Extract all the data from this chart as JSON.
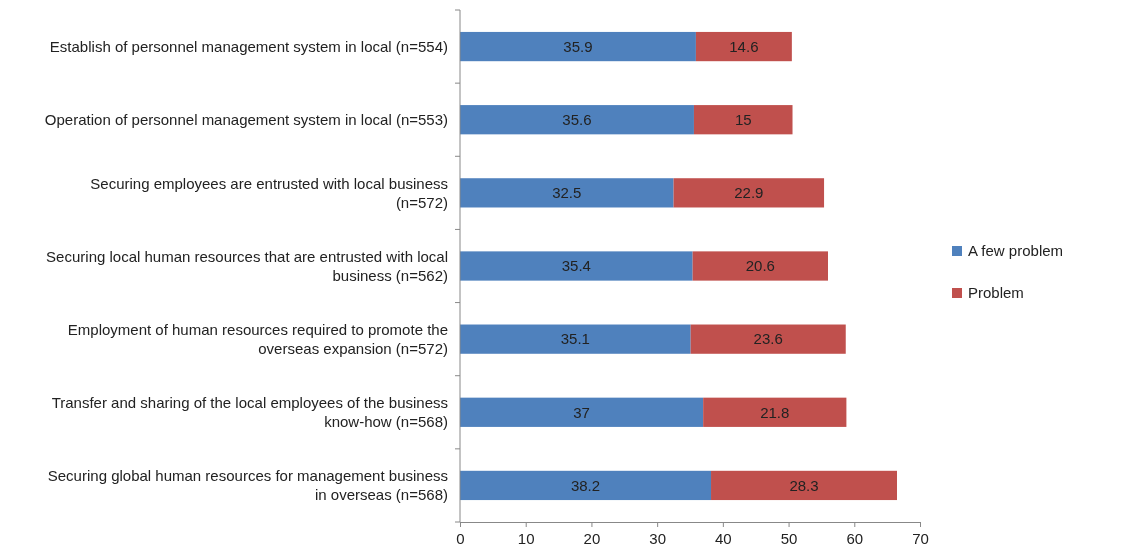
{
  "chart_data": {
    "type": "bar",
    "orientation": "horizontal",
    "stacked": true,
    "data_labels": true,
    "legend": "right",
    "grid": false,
    "categories": [
      "Establish of personnel management system in local (n=554)",
      "Operation of personnel management system in local (n=553)",
      "Securing employees are entrusted with local business (n=572)",
      "Securing local human resources that are entrusted with local business (n=562)",
      "Employment of human resources required to promote the overseas expansion (n=572)",
      "Transfer and sharing of the local employees of the business know-how (n=568)",
      "Securing global human resources for management business in overseas (n=568)"
    ],
    "series": [
      {
        "name": "A few problem",
        "color": "#4f81bd",
        "values": [
          35.9,
          35.6,
          32.5,
          35.4,
          35.1,
          37,
          38.2
        ]
      },
      {
        "name": "Problem",
        "color": "#c0504d",
        "values": [
          14.6,
          15,
          22.9,
          20.6,
          23.6,
          21.8,
          28.3
        ]
      }
    ],
    "xlim": [
      0,
      70
    ],
    "xticks": [
      0,
      10,
      20,
      30,
      40,
      50,
      60,
      70
    ]
  }
}
